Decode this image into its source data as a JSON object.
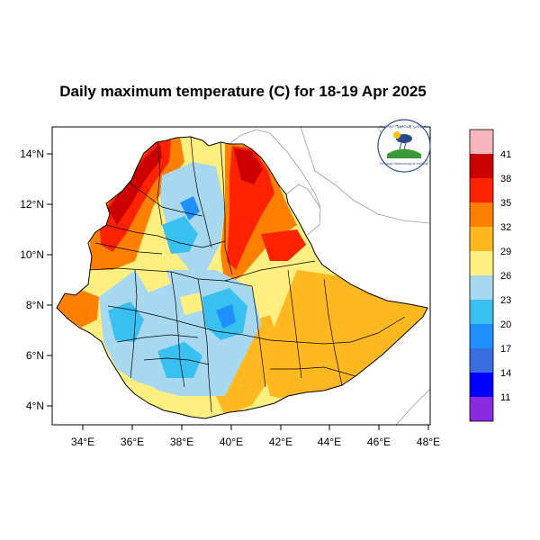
{
  "title": "Daily maximum temperature (C) for 18-19 Apr 2025",
  "logo": {
    "text_top": "የኢትዮጵያ ሜቲዎሮሎጂ ኢንስቲትዩት",
    "text_bottom": "Ethiopian Meteorological Institute"
  },
  "colorbar": {
    "labels": [
      "41",
      "38",
      "35",
      "32",
      "29",
      "26",
      "23",
      "20",
      "17",
      "14",
      "11"
    ],
    "colors": [
      "#f7b6bb",
      "#cc0000",
      "#ff2200",
      "#ff7f00",
      "#ffb820",
      "#ffee80",
      "#a8d8f0",
      "#38c0f0",
      "#1e90ff",
      "#3a6ee0",
      "#0000ff",
      "#8a2be2"
    ]
  },
  "axes": {
    "x_ticks": [
      "34°E",
      "36°E",
      "38°E",
      "40°E",
      "42°E",
      "44°E",
      "46°E",
      "48°E"
    ],
    "y_ticks": [
      "14°N",
      "12°N",
      "10°N",
      "8°N",
      "6°N",
      "4°N"
    ]
  },
  "colors": {
    "very_hot": "#cc0000",
    "hot": "#ff2200",
    "warm": "#ff7f00",
    "orange": "#ffb820",
    "yellow": "#ffee80",
    "light_blue": "#a8d8f0",
    "cyan": "#38c0f0",
    "blue": "#1e90ff"
  }
}
